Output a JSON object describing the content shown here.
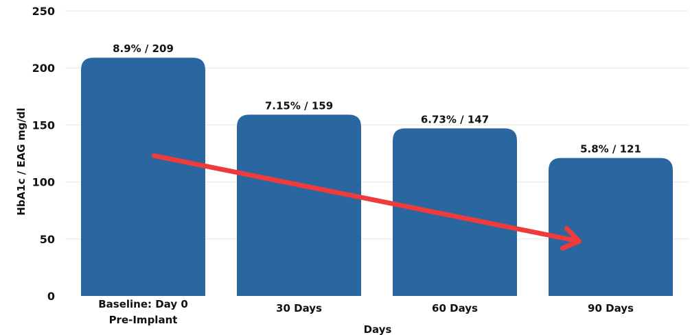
{
  "chart_data": {
    "type": "bar",
    "categories": [
      [
        "Baseline: Day 0",
        "Pre-Implant"
      ],
      [
        "30 Days"
      ],
      [
        "60 Days"
      ],
      [
        "90 Days"
      ]
    ],
    "values": [
      209,
      159,
      147,
      121
    ],
    "data_labels": [
      "8.9% / 209",
      "7.15% / 159",
      "6.73% / 147",
      "5.8% / 121"
    ],
    "xlabel": "Days",
    "ylabel": "HbA1c / EAG mg/dl",
    "ylim": [
      0,
      250
    ],
    "yticks": [
      0,
      50,
      100,
      150,
      200,
      250
    ],
    "grid": true,
    "bar_color": "#2a67a0",
    "annotations": [
      {
        "type": "trend-arrow",
        "color": "#ee3b3b",
        "from": {
          "category": 0,
          "y": 123
        },
        "to": {
          "category": 3,
          "y": 48
        }
      }
    ]
  }
}
